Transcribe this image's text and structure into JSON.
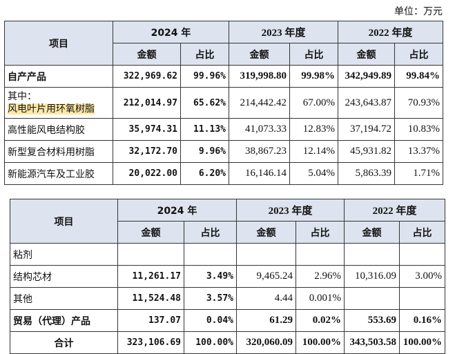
{
  "unit_label": "单位：万元",
  "table1": {
    "header": {
      "item": "项目",
      "y2024": "2024 年",
      "y2023": "2023 年度",
      "y2022": "2022 年度",
      "amount": "金额",
      "ratio": "占比"
    },
    "rows": [
      {
        "label": "自产产品",
        "a24": "322,969.62",
        "r24": "99.96%",
        "a23": "319,998.80",
        "r23": "99.98%",
        "a22": "342,949.89",
        "r22": "99.84%"
      },
      {
        "label_line1": "其中：",
        "label_line2": "风电叶片用环氧树脂",
        "a24": "212,014.97",
        "r24": "65.62%",
        "a23": "214,442.42",
        "r23": "67.00%",
        "a22": "243,643.87",
        "r22": "70.93%"
      },
      {
        "label": "高性能风电结构胶",
        "a24": "35,974.31",
        "r24": "11.13%",
        "a23": "41,073.33",
        "r23": "12.83%",
        "a22": "37,194.72",
        "r22": "10.83%"
      },
      {
        "label": "新型复合材料用树脂",
        "a24": "32,172.70",
        "r24": "9.96%",
        "a23": "38,867.23",
        "r23": "12.14%",
        "a22": "45,931.82",
        "r22": "13.37%"
      },
      {
        "label": "新能源汽车及工业胶",
        "a24": "20,022.00",
        "r24": "6.20%",
        "a23": "16,146.14",
        "r23": "5.04%",
        "a22": "5,863.39",
        "r22": "1.71%"
      }
    ]
  },
  "table2": {
    "header": {
      "item": "项目",
      "y2024": "2024 年",
      "y2023": "2023 年度",
      "y2022": "2022 年度",
      "amount": "金额",
      "ratio": "占比"
    },
    "rows": [
      {
        "label": "粘剂",
        "a24": "",
        "r24": "",
        "a23": "",
        "r23": "",
        "a22": "",
        "r22": ""
      },
      {
        "label": "结构芯材",
        "a24": "11,261.17",
        "r24": "3.49%",
        "a23": "9,465.24",
        "r23": "2.96%",
        "a22": "10,316.09",
        "r22": "3.00%"
      },
      {
        "label": "其他",
        "a24": "11,524.48",
        "r24": "3.57%",
        "a23": "4.44",
        "r23": "0.001%",
        "a22": "",
        "r22": ""
      },
      {
        "label": "贸易（代理）产品",
        "a24": "137.07",
        "r24": "0.04%",
        "a23": "61.29",
        "r23": "0.02%",
        "a22": "553.69",
        "r22": "0.16%"
      },
      {
        "label": "合计",
        "a24": "323,106.69",
        "r24": "100.00%",
        "a23": "320,060.09",
        "r23": "100.00%",
        "a22": "343,503.58",
        "r22": "100.00%"
      }
    ]
  }
}
